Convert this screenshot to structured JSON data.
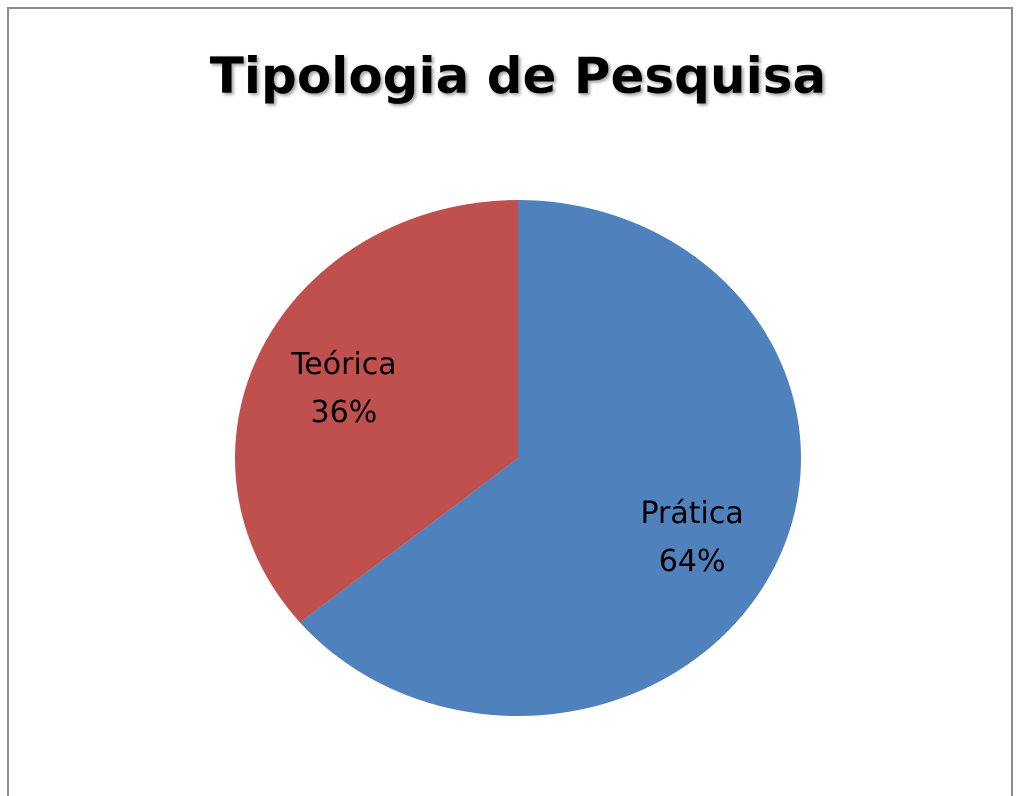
{
  "chart_data": {
    "type": "pie",
    "title": "Tipologia de Pesquisa",
    "categories": [
      "Prática",
      "Teórica"
    ],
    "values": [
      64,
      36
    ],
    "value_labels": [
      "64%",
      "36%"
    ],
    "colors": [
      "#4f81bd",
      "#c0504d"
    ]
  }
}
